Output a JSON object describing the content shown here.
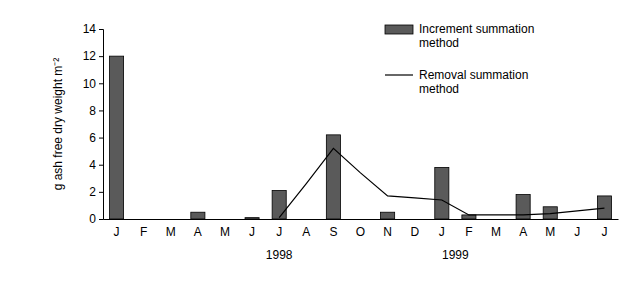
{
  "chart_data": {
    "type": "bar",
    "y_label": "g ash free dry weight m⁻²",
    "categories": [
      "J",
      "F",
      "M",
      "A",
      "M",
      "J",
      "J",
      "A",
      "S",
      "O",
      "N",
      "D",
      "J",
      "F",
      "M",
      "A",
      "M",
      "J",
      "J"
    ],
    "series": [
      {
        "name": "Increment summation method",
        "type": "bar",
        "color": "#5a5a5a",
        "values": [
          12,
          null,
          null,
          0.5,
          null,
          0.1,
          2.1,
          null,
          6.2,
          null,
          0.5,
          null,
          3.8,
          0.3,
          null,
          1.8,
          0.9,
          null,
          1.7
        ]
      },
      {
        "name": "Removal summation method",
        "type": "line",
        "color": "#000000",
        "values": [
          null,
          null,
          null,
          null,
          null,
          null,
          0.1,
          2.6,
          5.2,
          3.4,
          1.7,
          1.55,
          1.4,
          0.3,
          0.3,
          0.3,
          0.4,
          0.6,
          0.8
        ]
      }
    ],
    "annotations": [
      {
        "text": "1998",
        "at": 6
      },
      {
        "text": "1999",
        "at": 12.5
      }
    ],
    "ylim": [
      0,
      14
    ],
    "yticks": [
      0,
      2,
      4,
      6,
      8,
      10,
      12,
      14
    ],
    "legend": "top-right",
    "grid": false
  }
}
